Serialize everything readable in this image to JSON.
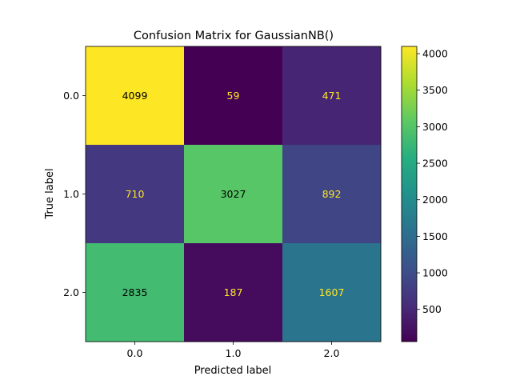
{
  "chart_data": {
    "type": "heatmap",
    "title": "Confusion Matrix for GaussianNB()",
    "xlabel": "Predicted label",
    "ylabel": "True label",
    "x_categories": [
      "0.0",
      "1.0",
      "2.0"
    ],
    "y_categories": [
      "0.0",
      "1.0",
      "2.0"
    ],
    "values": [
      [
        4099,
        59,
        471
      ],
      [
        710,
        3027,
        892
      ],
      [
        2835,
        187,
        1607
      ]
    ],
    "colormap": "viridis",
    "vmin": 59,
    "vmax": 4099,
    "colorbar_ticks": [
      500,
      1000,
      1500,
      2000,
      2500,
      3000,
      3500,
      4000
    ],
    "text_color_dark": "#000000",
    "text_color_light": "#fde725"
  }
}
